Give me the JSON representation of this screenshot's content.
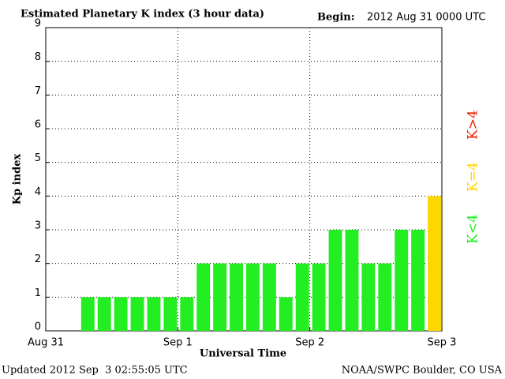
{
  "chart_data": {
    "type": "bar",
    "title": "Estimated Planetary K index (3 hour data)",
    "begin_label": "Begin:",
    "begin": "2012 Aug 31 0000 UTC",
    "ylabel": "Kp index",
    "xlabel": "Universal Time",
    "updated": "Updated 2012 Sep  3 02:55:05 UTC",
    "source": "NOAA/SWPC Boulder, CO USA",
    "x": [
      0,
      3,
      6,
      9,
      12,
      15,
      18,
      21,
      24,
      27,
      30,
      33,
      36,
      39,
      42,
      45,
      48,
      51,
      54,
      57,
      60,
      63,
      66,
      69
    ],
    "values": [
      null,
      null,
      1,
      1,
      1,
      1,
      1,
      1,
      1,
      2,
      2,
      2,
      2,
      2,
      1,
      2,
      2,
      3,
      3,
      2,
      2,
      3,
      3,
      4
    ],
    "colors": [
      null,
      null,
      "#22ee22",
      "#22ee22",
      "#22ee22",
      "#22ee22",
      "#22ee22",
      "#22ee22",
      "#22ee22",
      "#22ee22",
      "#22ee22",
      "#22ee22",
      "#22ee22",
      "#22ee22",
      "#22ee22",
      "#22ee22",
      "#22ee22",
      "#22ee22",
      "#22ee22",
      "#22ee22",
      "#22ee22",
      "#22ee22",
      "#22ee22",
      "#ffd700"
    ],
    "xlim": [
      0,
      72
    ],
    "xticks": [
      {
        "value": 0,
        "label": "Aug 31"
      },
      {
        "value": 24,
        "label": "Sep 1"
      },
      {
        "value": 48,
        "label": "Sep 2"
      },
      {
        "value": 72,
        "label": "Sep 3"
      }
    ],
    "ylim": [
      0,
      9
    ],
    "yticks": [
      0,
      1,
      2,
      3,
      4,
      5,
      6,
      7,
      8,
      9
    ],
    "grid": true,
    "legend": [
      {
        "label": "K<4",
        "color": "#22ee22"
      },
      {
        "label": "K=4",
        "color": "#ffd700"
      },
      {
        "label": "K>4",
        "color": "#ee2200"
      }
    ]
  }
}
